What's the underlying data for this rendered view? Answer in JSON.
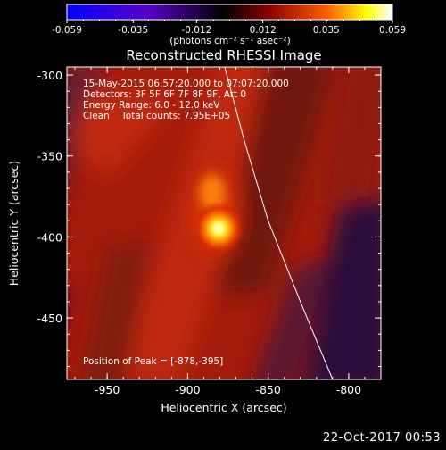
{
  "chart_data": {
    "type": "heatmap",
    "title": "Reconstructed RHESSI Image",
    "colorbar": {
      "ticks": [
        "-0.059",
        "-0.035",
        "-0.012",
        "0.012",
        "0.035",
        "0.059"
      ],
      "range": [
        -0.059,
        0.059
      ],
      "unit_label": "(photons cm⁻² s⁻¹ asec⁻²)",
      "colormap": [
        "#0000ff",
        "#5a00c8",
        "#000000",
        "#8b0000",
        "#ff6000",
        "#ffff00",
        "#ffffff"
      ]
    },
    "xlabel": "Heliocentric X (arcsec)",
    "ylabel": "Heliocentric Y (arcsec)",
    "xlim": [
      -975,
      -780
    ],
    "ylim": [
      -488,
      -295
    ],
    "xticks": [
      "-950",
      "-900",
      "-850",
      "-800"
    ],
    "yticks": [
      "-300",
      "-350",
      "-400",
      "-450"
    ],
    "annotations": [
      "15-May-2015 06:57:20.000 to 07:07:20.000",
      "Detectors: 3F 5F 6F 7F 8F 9F, Att 0",
      "Energy Range: 6.0 - 12.0 keV",
      "Clean    Total counts: 7.95E+05"
    ],
    "peak_label": "Position of Peak = [-878,-395]",
    "peak": {
      "x": -878,
      "y": -395
    },
    "limb_curve": [
      [
        -877,
        -295
      ],
      [
        -865,
        -340
      ],
      [
        -850,
        -390
      ],
      [
        -830,
        -440
      ],
      [
        -810,
        -488
      ]
    ]
  },
  "timestamp": "22-Oct-2017 00:53"
}
